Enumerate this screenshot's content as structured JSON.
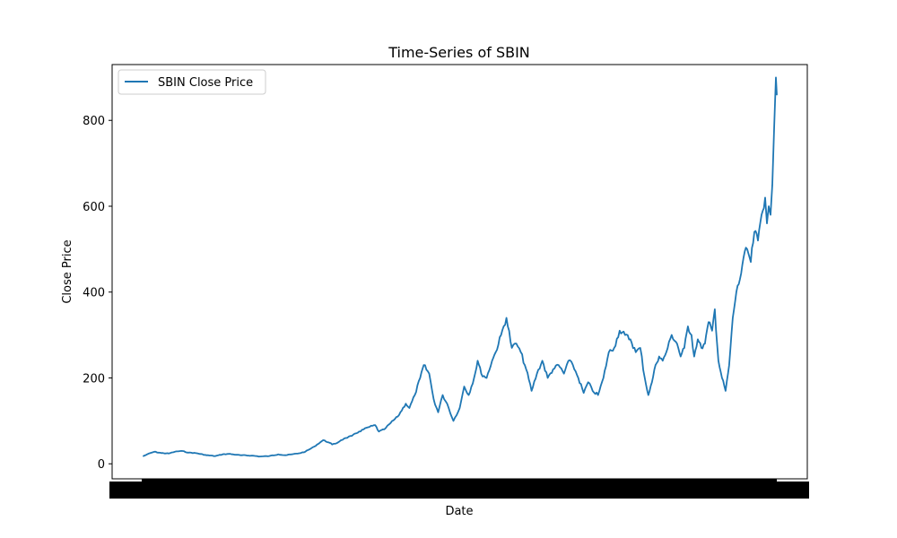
{
  "chart_data": {
    "type": "line",
    "title": "Time-Series of SBIN",
    "xlabel": "Date",
    "ylabel": "Close Price",
    "ylim": [
      -35,
      930
    ],
    "y_ticks": [
      0,
      200,
      400,
      600,
      800
    ],
    "y_tick_labels": [
      "0",
      "200",
      "400",
      "600",
      "800"
    ],
    "x_tick_labels_legible": false,
    "grid": false,
    "legend_position": "top-left",
    "series": [
      {
        "name": "SBIN Close Price",
        "color": "#1f77b4",
        "x": [
          0,
          4,
          12,
          20,
          28,
          35,
          42,
          50,
          58,
          70,
          80,
          88,
          95,
          108,
          120,
          130,
          140,
          150,
          158,
          165,
          172,
          180,
          190,
          200,
          206,
          210,
          215,
          220,
          225,
          232,
          240,
          250,
          258,
          262,
          268,
          275,
          283,
          292,
          296,
          302,
          308,
          312,
          318,
          323,
          328,
          333,
          338,
          345,
          352,
          357,
          362,
          368,
          372,
          376,
          382,
          388,
          392,
          398,
          404,
          410,
          415,
          420,
          426,
          432,
          438,
          444,
          450,
          456,
          462,
          468,
          473,
          478,
          484,
          490,
          495,
          500,
          506,
          512,
          518,
          524,
          530,
          536,
          542,
          548,
          553,
          558,
          562,
          566,
          570,
          574,
          578,
          582,
          588,
          594,
          598,
          602,
          606,
          610,
          613,
          617,
          621,
          625,
          629,
          633,
          636,
          640,
          644,
          648,
          652,
          656,
          660,
          664,
          668,
          672,
          676,
          680,
          684,
          688,
          692,
          694,
          696,
          698,
          700,
          702,
          704,
          705
        ],
        "y": [
          18,
          22,
          28,
          25,
          24,
          28,
          30,
          26,
          25,
          20,
          18,
          22,
          23,
          20,
          19,
          17,
          18,
          22,
          20,
          22,
          24,
          28,
          40,
          55,
          50,
          45,
          48,
          55,
          60,
          65,
          75,
          85,
          90,
          75,
          80,
          95,
          110,
          140,
          130,
          160,
          200,
          230,
          210,
          150,
          120,
          160,
          140,
          100,
          130,
          180,
          160,
          200,
          240,
          210,
          200,
          240,
          260,
          300,
          340,
          270,
          280,
          260,
          220,
          170,
          210,
          240,
          200,
          220,
          230,
          210,
          240,
          230,
          200,
          165,
          190,
          170,
          160,
          200,
          260,
          270,
          310,
          300,
          290,
          260,
          270,
          200,
          160,
          190,
          230,
          250,
          240,
          260,
          300,
          280,
          250,
          270,
          320,
          300,
          250,
          290,
          270,
          280,
          330,
          310,
          360,
          240,
          200,
          170,
          230,
          340,
          400,
          430,
          480,
          500,
          470,
          540,
          520,
          580,
          620,
          560,
          600,
          580,
          650,
          780,
          900,
          860
        ]
      }
    ]
  }
}
